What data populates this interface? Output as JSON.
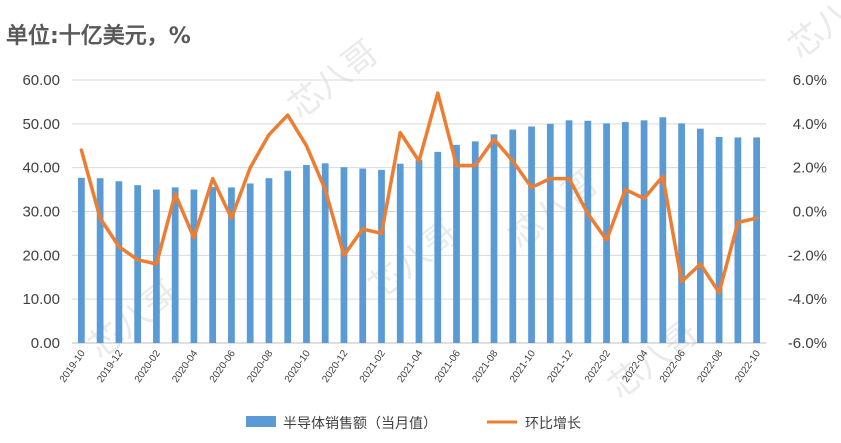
{
  "unit_label": "单位:十亿美元，%",
  "watermark": "芯八哥",
  "colors": {
    "bars": "#5B9BD5",
    "line": "#ED7D31",
    "grid": "#d9d9d9",
    "text": "#404040"
  },
  "chart_data": {
    "type": "bar",
    "categories": [
      "2019-10",
      "2019-11",
      "2019-12",
      "2020-01",
      "2020-02",
      "2020-03",
      "2020-04",
      "2020-05",
      "2020-06",
      "2020-07",
      "2020-08",
      "2020-09",
      "2020-10",
      "2020-11",
      "2020-12",
      "2021-01",
      "2021-02",
      "2021-03",
      "2021-04",
      "2021-05",
      "2021-06",
      "2021-07",
      "2021-08",
      "2021-09",
      "2021-10",
      "2021-11",
      "2021-12",
      "2022-01",
      "2022-02",
      "2022-03",
      "2022-04",
      "2022-05",
      "2022-06",
      "2022-07",
      "2022-08",
      "2022-09",
      "2022-10"
    ],
    "x_tick_labels": [
      "2019-10",
      "2019-12",
      "2020-02",
      "2020-04",
      "2020-06",
      "2020-08",
      "2020-10",
      "2020-12",
      "2021-02",
      "2021-04",
      "2021-06",
      "2021-08",
      "2021-10",
      "2021-12",
      "2022-02",
      "2022-04",
      "2022-06",
      "2022-08",
      "2022-10"
    ],
    "series": [
      {
        "name": "半导体销售额（当月值）",
        "type": "bar",
        "axis": "left",
        "values": [
          37.7,
          37.6,
          36.9,
          36.0,
          35.0,
          35.5,
          35.0,
          35.6,
          35.5,
          36.4,
          37.6,
          39.3,
          40.6,
          41.0,
          40.1,
          39.8,
          39.5,
          40.9,
          41.8,
          43.6,
          45.2,
          46.0,
          47.6,
          48.7,
          49.4,
          50.0,
          50.8,
          50.7,
          50.1,
          50.4,
          50.8,
          51.5,
          50.1,
          48.9,
          47.0,
          46.9,
          46.9
        ]
      },
      {
        "name": "环比增长",
        "type": "line",
        "axis": "right",
        "values": [
          2.8,
          -0.3,
          -1.6,
          -2.2,
          -2.4,
          0.8,
          -1.2,
          1.5,
          -0.3,
          2.0,
          3.5,
          4.4,
          3.0,
          1.0,
          -2.0,
          -0.8,
          -1.0,
          3.6,
          2.3,
          5.4,
          2.1,
          2.1,
          3.3,
          2.3,
          1.1,
          1.5,
          1.5,
          -0.1,
          -1.3,
          1.0,
          0.6,
          1.6,
          -3.2,
          -2.4,
          -3.7,
          -0.5,
          -0.3
        ]
      }
    ],
    "y_left": {
      "min": 0,
      "max": 60,
      "step": 10,
      "tick_labels": [
        "0.00",
        "10.00",
        "20.00",
        "30.00",
        "40.00",
        "50.00",
        "60.00"
      ]
    },
    "y_right": {
      "min": -6,
      "max": 6,
      "step": 2,
      "tick_labels": [
        "-6.0%",
        "-4.0%",
        "-2.0%",
        "0.0%",
        "2.0%",
        "4.0%",
        "6.0%"
      ]
    },
    "grid": true,
    "legend_position": "bottom"
  }
}
